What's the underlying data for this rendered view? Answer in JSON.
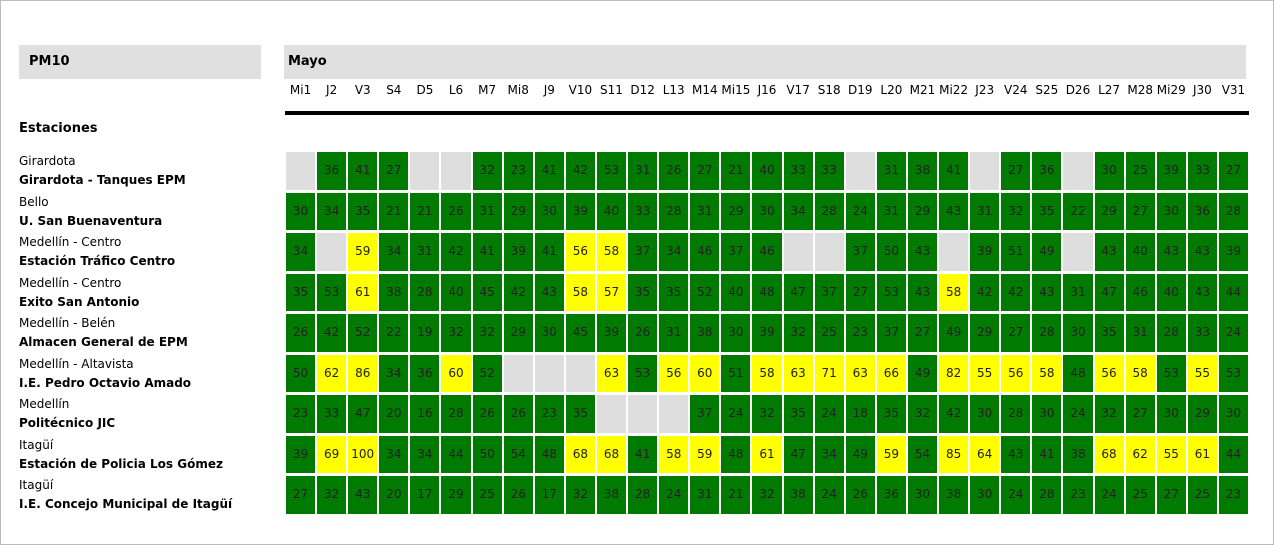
{
  "header": {
    "title": "PM10",
    "month": "Mayo",
    "stations_label": "Estaciones"
  },
  "colors": {
    "good": "#007a00",
    "high": "#ffff00",
    "missing": "#dedede"
  },
  "days": [
    "Mi1",
    "J2",
    "V3",
    "S4",
    "D5",
    "L6",
    "M7",
    "Mi8",
    "J9",
    "V10",
    "S11",
    "D12",
    "L13",
    "M14",
    "Mi15",
    "J16",
    "V17",
    "S18",
    "D19",
    "L20",
    "M21",
    "Mi22",
    "J23",
    "V24",
    "S25",
    "D26",
    "L27",
    "M28",
    "Mi29",
    "J30",
    "V31"
  ],
  "rows": [
    {
      "municipality": "Girardota",
      "station": "Girardota - Tanques EPM",
      "values": [
        null,
        36,
        41,
        27,
        null,
        null,
        32,
        23,
        41,
        42,
        53,
        31,
        26,
        27,
        21,
        40,
        33,
        33,
        null,
        31,
        38,
        41,
        null,
        27,
        36,
        null,
        30,
        25,
        39,
        33,
        27
      ]
    },
    {
      "municipality": "Bello",
      "station": "U. San Buenaventura",
      "values": [
        30,
        34,
        35,
        21,
        21,
        26,
        31,
        29,
        30,
        39,
        40,
        33,
        28,
        31,
        29,
        30,
        34,
        28,
        24,
        31,
        29,
        43,
        31,
        32,
        35,
        22,
        29,
        27,
        30,
        36,
        28
      ]
    },
    {
      "municipality": "Medellín - Centro",
      "station": "Estación Tráfico Centro",
      "values": [
        34,
        null,
        59,
        34,
        31,
        42,
        41,
        39,
        41,
        56,
        58,
        37,
        34,
        46,
        37,
        46,
        null,
        null,
        37,
        50,
        43,
        null,
        39,
        51,
        49,
        null,
        43,
        40,
        43,
        43,
        39
      ]
    },
    {
      "municipality": "Medellín - Centro",
      "station": "Exito San Antonio",
      "values": [
        35,
        53,
        61,
        38,
        28,
        40,
        45,
        42,
        43,
        58,
        57,
        35,
        35,
        52,
        40,
        48,
        47,
        37,
        27,
        53,
        43,
        58,
        42,
        42,
        43,
        31,
        47,
        46,
        40,
        43,
        44
      ]
    },
    {
      "municipality": "Medellín - Belén",
      "station": "Almacen General de EPM",
      "values": [
        26,
        42,
        52,
        22,
        19,
        32,
        32,
        29,
        30,
        45,
        39,
        26,
        31,
        38,
        30,
        39,
        32,
        25,
        23,
        37,
        27,
        49,
        29,
        27,
        28,
        30,
        35,
        31,
        28,
        33,
        24
      ]
    },
    {
      "municipality": "Medellín - Altavista",
      "station": "I.E. Pedro Octavio Amado",
      "values": [
        50,
        62,
        86,
        34,
        36,
        60,
        52,
        null,
        null,
        null,
        63,
        53,
        56,
        60,
        51,
        58,
        63,
        71,
        63,
        66,
        49,
        82,
        55,
        56,
        58,
        48,
        56,
        58,
        53,
        55,
        53
      ]
    },
    {
      "municipality": "Medellín",
      "station": "Politécnico JIC",
      "values": [
        23,
        33,
        47,
        20,
        16,
        28,
        26,
        26,
        23,
        35,
        null,
        null,
        null,
        37,
        24,
        32,
        35,
        24,
        18,
        35,
        32,
        42,
        30,
        28,
        30,
        24,
        32,
        27,
        30,
        29,
        30
      ]
    },
    {
      "municipality": "Itagüí",
      "station": "Estación de Policia Los Gómez",
      "values": [
        39,
        69,
        100,
        34,
        34,
        44,
        50,
        54,
        48,
        68,
        68,
        41,
        58,
        59,
        48,
        61,
        47,
        34,
        49,
        59,
        54,
        85,
        64,
        43,
        41,
        38,
        68,
        62,
        55,
        61,
        44
      ]
    },
    {
      "municipality": "Itagüí",
      "station": "I.E. Concejo Municipal de Itagüí",
      "values": [
        27,
        32,
        43,
        20,
        17,
        29,
        25,
        26,
        17,
        32,
        38,
        28,
        24,
        31,
        21,
        32,
        38,
        24,
        26,
        36,
        30,
        38,
        30,
        24,
        28,
        23,
        24,
        25,
        27,
        25,
        23
      ]
    }
  ]
}
